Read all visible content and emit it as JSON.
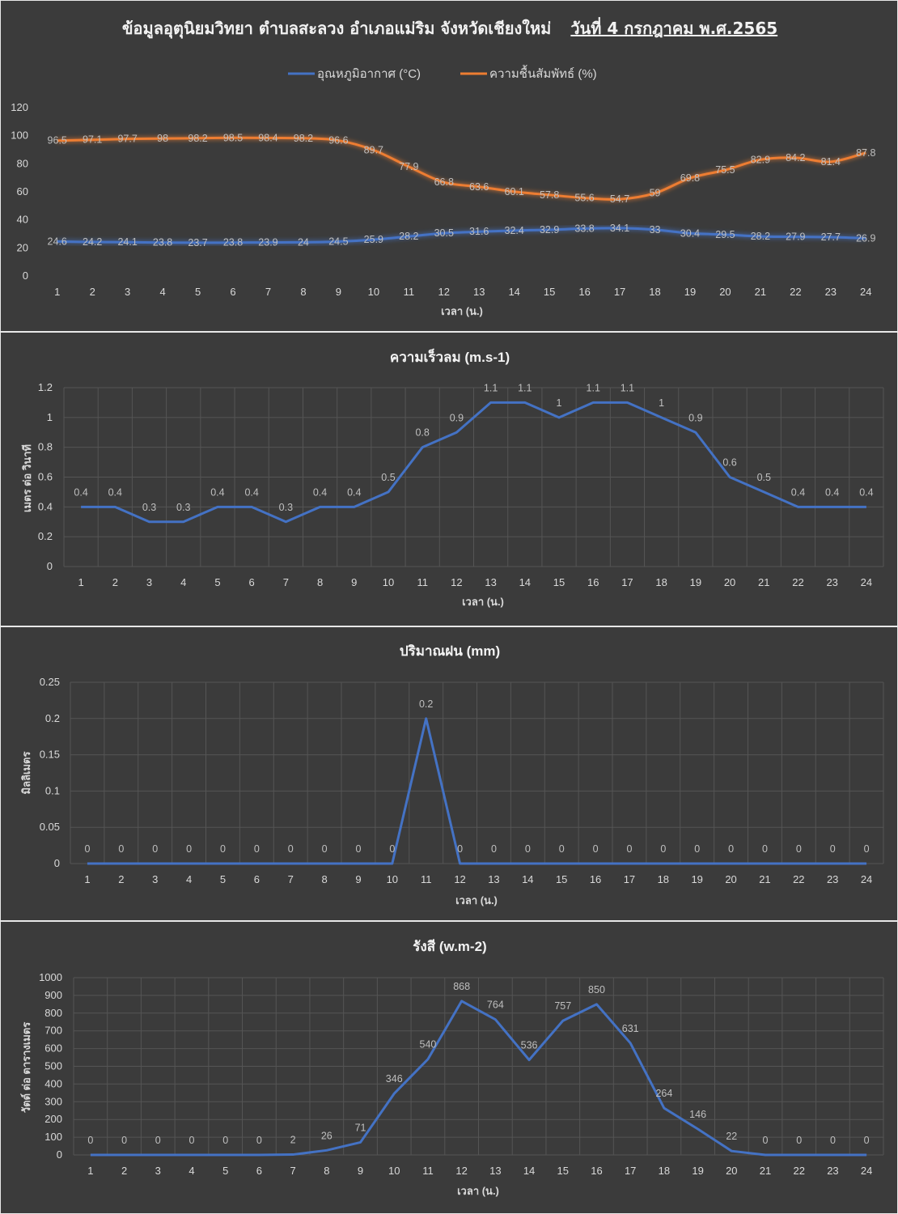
{
  "header": {
    "title_main": "ข้อมูลอุตุนิยมวิทยา ตำบลสะลวง อำเภอแม่ริม จังหวัดเชียงใหม่",
    "title_date": "วันที่ 4 กรกฎาคม พ.ศ.2565"
  },
  "chart_data": [
    {
      "type": "line",
      "title": "",
      "categories": [
        "1",
        "2",
        "3",
        "4",
        "5",
        "6",
        "7",
        "8",
        "9",
        "10",
        "11",
        "12",
        "13",
        "14",
        "15",
        "16",
        "17",
        "18",
        "19",
        "20",
        "21",
        "22",
        "23",
        "24"
      ],
      "series": [
        {
          "name": "อุณหภูมิอากาศ (°C)",
          "color": "#4472c4",
          "values": [
            24.6,
            24.2,
            24.1,
            23.8,
            23.7,
            23.8,
            23.9,
            24,
            24.5,
            25.9,
            28.2,
            30.5,
            31.6,
            32.4,
            32.9,
            33.8,
            34.1,
            33,
            30.4,
            29.5,
            28.2,
            27.9,
            27.7,
            26.9
          ]
        },
        {
          "name": "ความชื้นสัมพัทธ์ (%)",
          "color": "#ed7d31",
          "values": [
            96.5,
            97.1,
            97.7,
            98,
            98.2,
            98.5,
            98.4,
            98.2,
            96.6,
            89.7,
            77.9,
            66.8,
            63.6,
            60.1,
            57.8,
            55.6,
            54.7,
            59,
            69.8,
            75.5,
            82.9,
            84.2,
            81.4,
            87.8
          ]
        }
      ],
      "yticks": [
        "0",
        "20",
        "40",
        "60",
        "80",
        "100",
        "120"
      ],
      "ylim": [
        0,
        120
      ],
      "xlabel": "เวลา (น.)",
      "ylabel": "",
      "legend": "top-center",
      "grid": false
    },
    {
      "type": "line",
      "title": "ความเร็วลม (m.s-1)",
      "categories": [
        "1",
        "2",
        "3",
        "4",
        "5",
        "6",
        "7",
        "8",
        "9",
        "10",
        "11",
        "12",
        "13",
        "14",
        "15",
        "16",
        "17",
        "18",
        "19",
        "20",
        "21",
        "22",
        "23",
        "24"
      ],
      "series": [
        {
          "color": "#4472c4",
          "values": [
            0.4,
            0.4,
            0.3,
            0.3,
            0.4,
            0.4,
            0.3,
            0.4,
            0.4,
            0.5,
            0.8,
            0.9,
            1.1,
            1.1,
            1,
            1.1,
            1.1,
            1,
            0.9,
            0.6,
            0.5,
            0.4,
            0.4,
            0.4
          ]
        }
      ],
      "yticks": [
        "0",
        "0.2",
        "0.4",
        "0.6",
        "0.8",
        "1",
        "1.2"
      ],
      "ylim": [
        0,
        1.2
      ],
      "xlabel": "เวลา (น.)",
      "ylabel": "เมตร ต่อ วินาที",
      "grid": true
    },
    {
      "type": "line",
      "title": "ปริมาณฝน (mm)",
      "categories": [
        "1",
        "2",
        "3",
        "4",
        "5",
        "6",
        "7",
        "8",
        "9",
        "10",
        "11",
        "12",
        "13",
        "14",
        "15",
        "16",
        "17",
        "18",
        "19",
        "20",
        "21",
        "22",
        "23",
        "24"
      ],
      "series": [
        {
          "color": "#4472c4",
          "values": [
            0,
            0,
            0,
            0,
            0,
            0,
            0,
            0,
            0,
            0,
            0.2,
            0,
            0,
            0,
            0,
            0,
            0,
            0,
            0,
            0,
            0,
            0,
            0,
            0
          ]
        }
      ],
      "yticks": [
        "0",
        "0.05",
        "0.1",
        "0.15",
        "0.2",
        "0.25"
      ],
      "ylim": [
        0,
        0.25
      ],
      "xlabel": "เวลา (น.)",
      "ylabel": "มิลลิเมตร",
      "grid": true
    },
    {
      "type": "line",
      "title": "รังสี (w.m-2)",
      "categories": [
        "1",
        "2",
        "3",
        "4",
        "5",
        "6",
        "7",
        "8",
        "9",
        "10",
        "11",
        "12",
        "13",
        "14",
        "15",
        "16",
        "17",
        "18",
        "19",
        "20",
        "21",
        "22",
        "23",
        "24"
      ],
      "series": [
        {
          "color": "#4472c4",
          "values": [
            0,
            0,
            0,
            0,
            0,
            0,
            2,
            26,
            71,
            346,
            540,
            868,
            764,
            536,
            757,
            850,
            631,
            264,
            146,
            22,
            0,
            0,
            0,
            0
          ]
        }
      ],
      "yticks": [
        "0",
        "100",
        "200",
        "300",
        "400",
        "500",
        "600",
        "700",
        "800",
        "900",
        "1000"
      ],
      "ylim": [
        0,
        1000
      ],
      "xlabel": "เวลา (น.)",
      "ylabel": "วัตต์ ต่อ ตารางเมตร",
      "grid": true
    }
  ]
}
